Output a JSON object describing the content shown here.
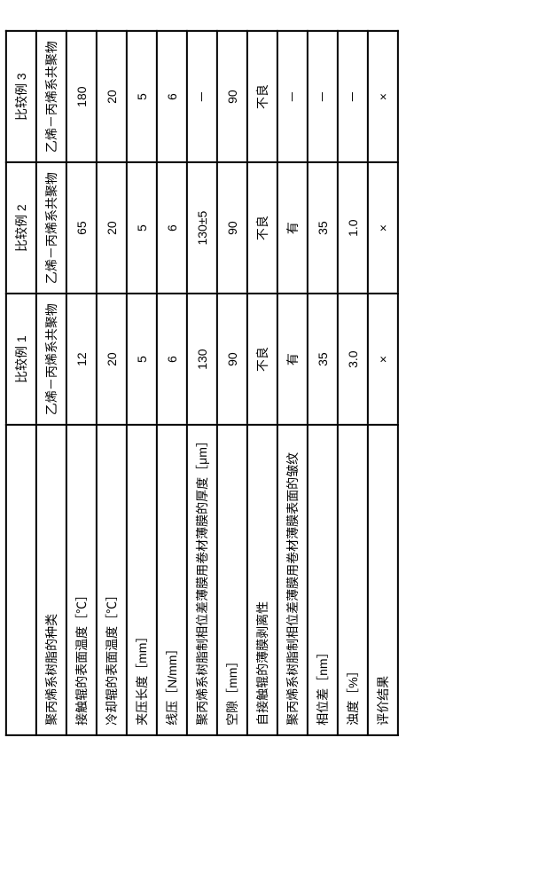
{
  "table": {
    "header_blank": "",
    "headers": [
      "比较例 1",
      "比较例 2",
      "比较例 3"
    ],
    "rows": [
      {
        "label": "聚丙烯系树脂的种类",
        "cells": [
          "乙烯－丙烯系共聚物",
          "乙烯－丙烯系共聚物",
          "乙烯－丙烯系共聚物"
        ]
      },
      {
        "label": "接触辊的表面温度［℃］",
        "cells": [
          "12",
          "65",
          "180"
        ]
      },
      {
        "label": "冷却辊的表面温度［℃］",
        "cells": [
          "20",
          "20",
          "20"
        ]
      },
      {
        "label": "夹压长度［mm］",
        "cells": [
          "5",
          "5",
          "5"
        ]
      },
      {
        "label": "线压［N/mm］",
        "cells": [
          "6",
          "6",
          "6"
        ]
      },
      {
        "label": "聚丙烯系树脂制相位差薄膜用卷材薄膜的厚度［μm］",
        "cells": [
          "130",
          "130±5",
          "－"
        ]
      },
      {
        "label": "空隙［mm］",
        "cells": [
          "90",
          "90",
          "90"
        ]
      },
      {
        "label": "自接触辊的薄膜剥离性",
        "cells": [
          "不良",
          "不良",
          "不良"
        ]
      },
      {
        "label": "聚丙烯系树脂制相位差薄膜用卷材薄膜表面的皱纹",
        "cells": [
          "有",
          "有",
          "－"
        ]
      },
      {
        "label": "相位差［nm］",
        "cells": [
          "35",
          "35",
          "－"
        ]
      },
      {
        "label": "浊度［%］",
        "cells": [
          "3.0",
          "1.0",
          "－"
        ]
      },
      {
        "label": "评价结果",
        "cells": [
          "×",
          "×",
          "×"
        ]
      }
    ]
  }
}
